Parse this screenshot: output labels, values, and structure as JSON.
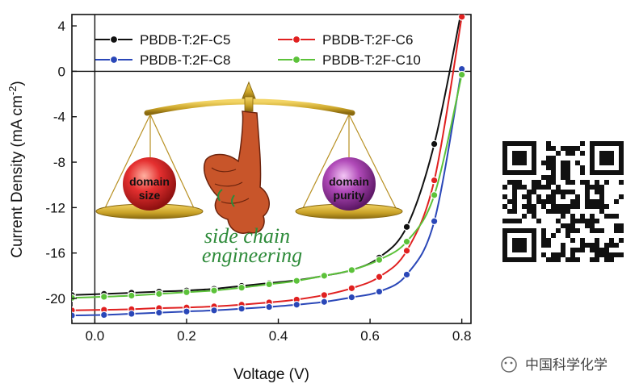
{
  "chart_data": {
    "type": "line",
    "title": "",
    "xlabel": "Voltage (V)",
    "ylabel": "Current Density (mA cm",
    "ylabel_superscript": "-2",
    "ylabel_close": ")",
    "xlim": [
      -0.05,
      0.82
    ],
    "ylim": [
      -22.2,
      5
    ],
    "xticks": [
      0.0,
      0.2,
      0.4,
      0.6,
      0.8
    ],
    "xtick_labels": [
      "0.0",
      "0.2",
      "0.4",
      "0.6",
      "0.8"
    ],
    "yticks": [
      4,
      0,
      -4,
      -8,
      -12,
      -16,
      -20
    ],
    "ytick_labels": [
      "4",
      "0",
      "-4",
      "-8",
      "-12",
      "-16",
      "-20"
    ],
    "legend_position": "top",
    "series": [
      {
        "name": "PBDB-T:2F-C5",
        "color": "#111111",
        "x": [
          -0.05,
          0.02,
          0.08,
          0.14,
          0.2,
          0.26,
          0.32,
          0.38,
          0.44,
          0.5,
          0.56,
          0.62,
          0.68,
          0.74,
          0.8
        ],
        "y": [
          -19.7,
          -19.6,
          -19.5,
          -19.4,
          -19.3,
          -19.15,
          -18.9,
          -18.65,
          -18.4,
          -18.0,
          -17.5,
          -16.4,
          -13.7,
          -6.4,
          5.5
        ]
      },
      {
        "name": "PBDB-T:2F-C6",
        "color": "#e02020",
        "x": [
          -0.05,
          0.02,
          0.08,
          0.14,
          0.2,
          0.26,
          0.32,
          0.38,
          0.44,
          0.5,
          0.56,
          0.62,
          0.68,
          0.74,
          0.8
        ],
        "y": [
          -21.05,
          -21.0,
          -20.95,
          -20.85,
          -20.8,
          -20.7,
          -20.55,
          -20.35,
          -20.1,
          -19.7,
          -19.1,
          -18.1,
          -15.8,
          -9.6,
          4.8
        ]
      },
      {
        "name": "PBDB-T:2F-C8",
        "color": "#2a47b8",
        "x": [
          -0.05,
          0.02,
          0.08,
          0.14,
          0.2,
          0.26,
          0.32,
          0.38,
          0.44,
          0.5,
          0.56,
          0.62,
          0.68,
          0.74,
          0.8
        ],
        "y": [
          -21.5,
          -21.45,
          -21.35,
          -21.25,
          -21.15,
          -21.05,
          -20.9,
          -20.75,
          -20.55,
          -20.3,
          -19.9,
          -19.4,
          -17.9,
          -13.2,
          0.2
        ]
      },
      {
        "name": "PBDB-T:2F-C10",
        "color": "#5cc23a",
        "x": [
          -0.05,
          0.02,
          0.08,
          0.14,
          0.2,
          0.26,
          0.32,
          0.38,
          0.44,
          0.5,
          0.56,
          0.62,
          0.68,
          0.74,
          0.8
        ],
        "y": [
          -19.95,
          -19.85,
          -19.75,
          -19.6,
          -19.45,
          -19.3,
          -19.05,
          -18.75,
          -18.45,
          -18.0,
          -17.5,
          -16.6,
          -15.0,
          -10.9,
          -0.3
        ]
      }
    ],
    "annotations": {
      "left_ball": [
        "domain",
        "size"
      ],
      "right_ball": [
        "domain",
        "purity"
      ],
      "caption_line1": "side chain",
      "caption_line2": "engineering"
    }
  },
  "watermark": {
    "label": "中国科学化学"
  },
  "colors": {
    "left_ball": "#e53030",
    "right_ball": "#b04ab8",
    "scale_gold": "#c9a227",
    "hand": "#c8552a",
    "caption": "#2e8b3a"
  }
}
